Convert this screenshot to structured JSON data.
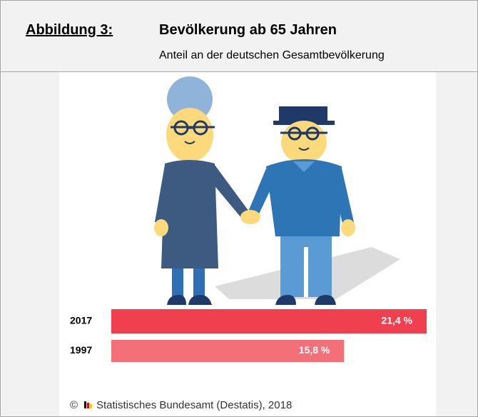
{
  "chart_data": {
    "type": "bar",
    "orientation": "horizontal",
    "figure_label": "Abbildung 3:",
    "title": "Bevölkerung ab 65 Jahren",
    "subtitle": "Anteil an der deutschen Gesamtbevölkerung",
    "categories": [
      "2017",
      "1997"
    ],
    "values": [
      21.4,
      15.8
    ],
    "value_labels": [
      "21,4 %",
      "15,8 %"
    ],
    "colors": [
      "#f0404f",
      "#f47078"
    ],
    "xlim": [
      0,
      21.4
    ],
    "copyright": "©",
    "source": "Statistisches Bundesamt (Destatis), 2018"
  }
}
